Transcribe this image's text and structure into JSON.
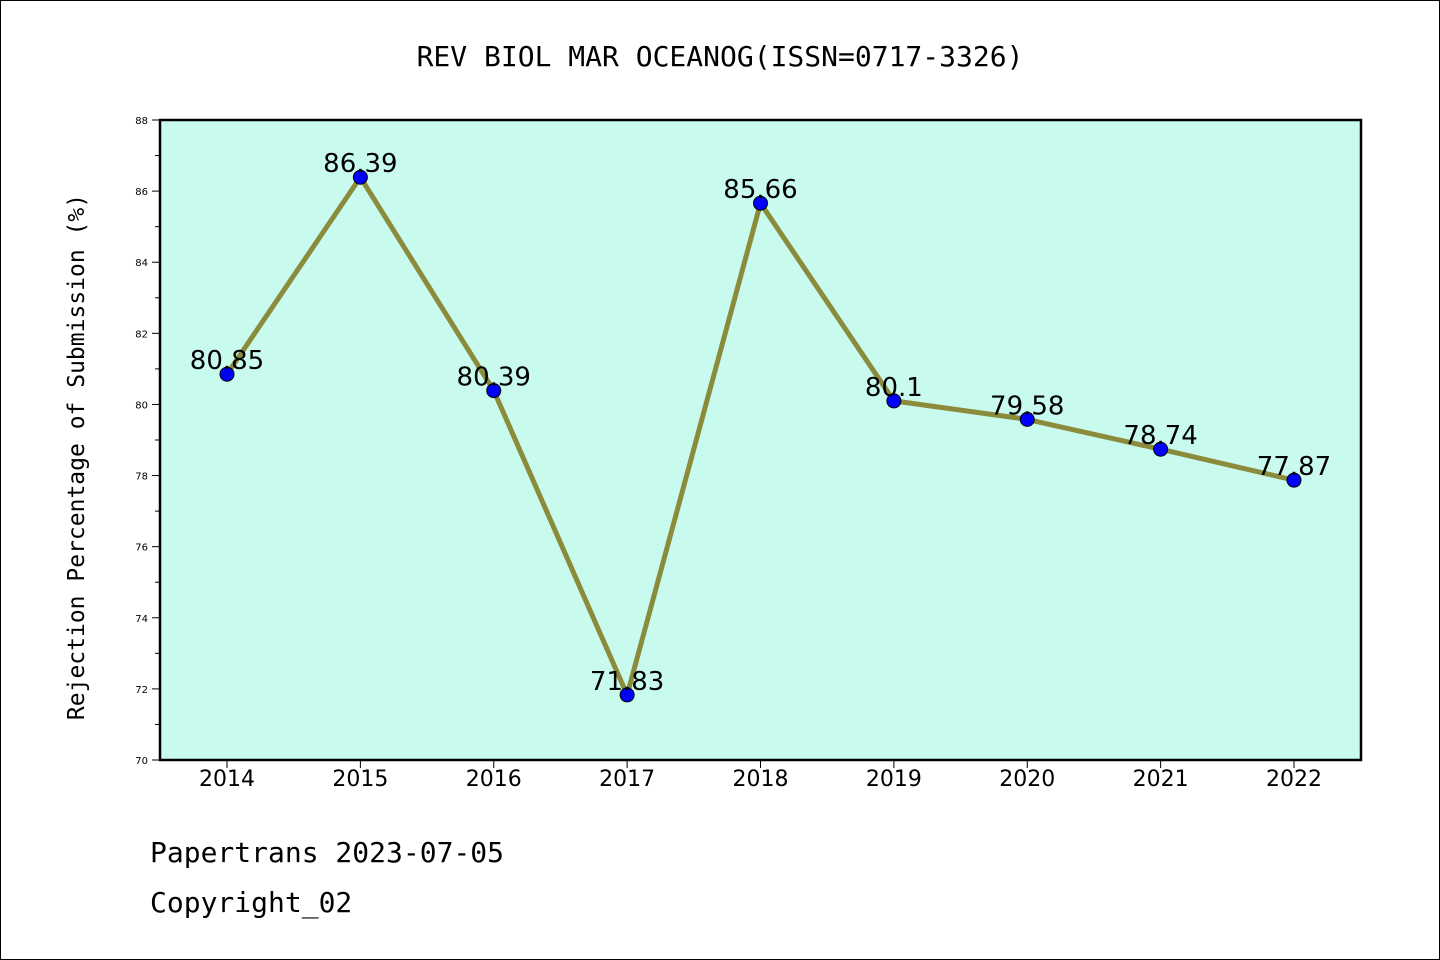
{
  "chart_data": {
    "type": "line",
    "title": "REV BIOL MAR OCEANOG(ISSN=0717-3326)",
    "xlabel": "",
    "ylabel": "Rejection Percentage of Submission (%)",
    "categories": [
      "2014",
      "2015",
      "2016",
      "2017",
      "2018",
      "2019",
      "2020",
      "2021",
      "2022"
    ],
    "series": [
      {
        "values": [
          80.85,
          86.39,
          80.39,
          71.83,
          85.66,
          80.1,
          79.58,
          78.74,
          77.87
        ],
        "labels": [
          "80.85",
          "86.39",
          "80.39",
          "71.83",
          "85.66",
          "80.1",
          "79.58",
          "78.74",
          "77.87"
        ]
      }
    ],
    "ylim": [
      70,
      88
    ],
    "yticks": [
      "70",
      "72",
      "74",
      "76",
      "78",
      "80",
      "82",
      "84",
      "86",
      "88"
    ],
    "grid": false,
    "colors": {
      "plot_background": "#c8fbee",
      "line": "#8b8b3c",
      "marker": "#0000ff"
    }
  },
  "footer": {
    "line1": "Papertrans 2023-07-05",
    "line2": "Copyright_02"
  }
}
